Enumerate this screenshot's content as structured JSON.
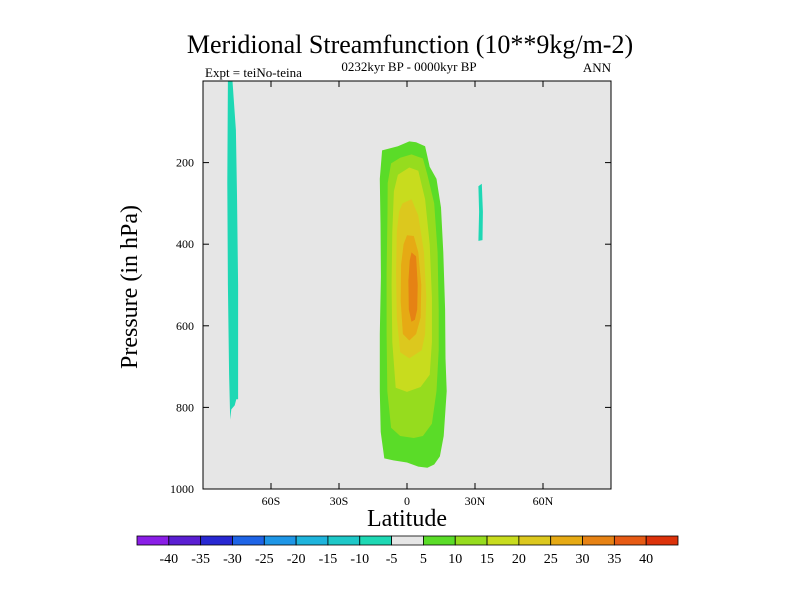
{
  "chart_data": {
    "type": "contour",
    "title": "Meridional Streamfunction (10**9kg/m-2)",
    "subtitle_left": "Expt = teiNo-teina",
    "subtitle_center": "0232kyr BP - 0000kyr BP",
    "subtitle_right": "ANN",
    "xlabel": "Latitude",
    "ylabel": "Pressure (in hPa)",
    "xlim": [
      -90,
      90
    ],
    "ylim": [
      1000,
      0
    ],
    "x_ticks": [
      {
        "value": -60,
        "label": "60S"
      },
      {
        "value": -30,
        "label": "30S"
      },
      {
        "value": 0,
        "label": "0"
      },
      {
        "value": 30,
        "label": "30N"
      },
      {
        "value": 60,
        "label": "60N"
      }
    ],
    "y_ticks": [
      {
        "value": 200,
        "label": "200"
      },
      {
        "value": 400,
        "label": "400"
      },
      {
        "value": 600,
        "label": "600"
      },
      {
        "value": 800,
        "label": "800"
      },
      {
        "value": 1000,
        "label": "1000"
      }
    ],
    "background_color": "#e6e6e6",
    "colorbar": {
      "labels": [
        "-40",
        "-35",
        "-30",
        "-25",
        "-20",
        "-15",
        "-10",
        "-5",
        "5",
        "10",
        "15",
        "20",
        "25",
        "30",
        "35",
        "40"
      ],
      "colors": [
        "#8a1ee6",
        "#5a1ed2",
        "#2828d2",
        "#1e64e6",
        "#1e96e6",
        "#1eb4dc",
        "#1ec8c8",
        "#1ed8b4",
        "#e6e6e6",
        "#5adc28",
        "#96dc1e",
        "#c8dc1e",
        "#dcc81e",
        "#e6aa14",
        "#e68214",
        "#e65a14",
        "#dc320a"
      ]
    },
    "regions": [
      {
        "name": "southern-negative-cell",
        "color": "#1ed8b4",
        "points": [
          [
            -79,
            0
          ],
          [
            -77,
            0
          ],
          [
            -76.5,
            40
          ],
          [
            -75.5,
            120
          ],
          [
            -75,
            280
          ],
          [
            -74.5,
            500
          ],
          [
            -74.5,
            780
          ],
          [
            -75.3,
            780
          ],
          [
            -76,
            795
          ],
          [
            -77.5,
            805
          ],
          [
            -78,
            830
          ],
          [
            -78.5,
            720
          ],
          [
            -79,
            500
          ],
          [
            -79.3,
            250
          ]
        ]
      },
      {
        "name": "northern-negative-cell",
        "color": "#1ed8b4",
        "points": [
          [
            31.5,
            258
          ],
          [
            33,
            252
          ],
          [
            33.5,
            320
          ],
          [
            33.3,
            390
          ],
          [
            31.5,
            392
          ],
          [
            31.8,
            320
          ]
        ]
      },
      {
        "name": "positive-5",
        "color": "#5adc28",
        "points": [
          [
            -11,
            170
          ],
          [
            -4,
            160
          ],
          [
            1,
            148
          ],
          [
            4,
            150
          ],
          [
            8,
            160
          ],
          [
            10,
            210
          ],
          [
            13,
            240
          ],
          [
            15,
            310
          ],
          [
            16,
            420
          ],
          [
            16.8,
            560
          ],
          [
            17,
            680
          ],
          [
            17.5,
            760
          ],
          [
            16.2,
            870
          ],
          [
            14.5,
            920
          ],
          [
            12,
            940
          ],
          [
            9,
            948
          ],
          [
            5,
            945
          ],
          [
            0,
            935
          ],
          [
            -6,
            930
          ],
          [
            -10,
            925
          ],
          [
            -11.6,
            860
          ],
          [
            -12,
            760
          ],
          [
            -12,
            620
          ],
          [
            -11.5,
            480
          ],
          [
            -11.7,
            350
          ],
          [
            -12,
            240
          ]
        ]
      },
      {
        "name": "positive-10",
        "color": "#96dc1e",
        "points": [
          [
            -7,
            202
          ],
          [
            -3,
            188
          ],
          [
            2,
            180
          ],
          [
            7,
            190
          ],
          [
            9,
            230
          ],
          [
            12,
            300
          ],
          [
            13.5,
            420
          ],
          [
            14,
            560
          ],
          [
            14,
            660
          ],
          [
            13,
            760
          ],
          [
            11,
            840
          ],
          [
            7,
            870
          ],
          [
            3,
            875
          ],
          [
            -3,
            870
          ],
          [
            -7,
            850
          ],
          [
            -8.7,
            760
          ],
          [
            -9,
            620
          ],
          [
            -9,
            470
          ],
          [
            -8.6,
            320
          ],
          [
            -8.5,
            250
          ]
        ]
      },
      {
        "name": "positive-15",
        "color": "#c8dc1e",
        "points": [
          [
            -4,
            230
          ],
          [
            1,
            212
          ],
          [
            5,
            220
          ],
          [
            8,
            290
          ],
          [
            10,
            400
          ],
          [
            11,
            530
          ],
          [
            11,
            640
          ],
          [
            10,
            720
          ],
          [
            6,
            750
          ],
          [
            0,
            762
          ],
          [
            -5,
            752
          ],
          [
            -6.5,
            640
          ],
          [
            -6.8,
            500
          ],
          [
            -6.5,
            370
          ],
          [
            -5.8,
            270
          ]
        ]
      },
      {
        "name": "positive-20",
        "color": "#dcc81e",
        "points": [
          [
            -2,
            300
          ],
          [
            2,
            290
          ],
          [
            5,
            330
          ],
          [
            7.5,
            420
          ],
          [
            8.5,
            530
          ],
          [
            8,
            620
          ],
          [
            6.5,
            660
          ],
          [
            1,
            680
          ],
          [
            -3,
            665
          ],
          [
            -4.5,
            580
          ],
          [
            -4.8,
            470
          ],
          [
            -4.5,
            370
          ],
          [
            -3.5,
            320
          ]
        ]
      },
      {
        "name": "positive-25",
        "color": "#e6aa14",
        "points": [
          [
            0,
            378
          ],
          [
            3,
            380
          ],
          [
            5,
            420
          ],
          [
            6.3,
            500
          ],
          [
            6,
            580
          ],
          [
            4,
            620
          ],
          [
            1,
            636
          ],
          [
            -1.8,
            620
          ],
          [
            -2.8,
            540
          ],
          [
            -2.6,
            450
          ],
          [
            -1.5,
            400
          ]
        ]
      },
      {
        "name": "positive-30",
        "color": "#e68214",
        "points": [
          [
            2,
            420
          ],
          [
            4,
            430
          ],
          [
            4.7,
            500
          ],
          [
            4.5,
            560
          ],
          [
            3.5,
            585
          ],
          [
            2,
            590
          ],
          [
            0.8,
            560
          ],
          [
            0.6,
            490
          ],
          [
            1.2,
            440
          ]
        ]
      }
    ]
  }
}
